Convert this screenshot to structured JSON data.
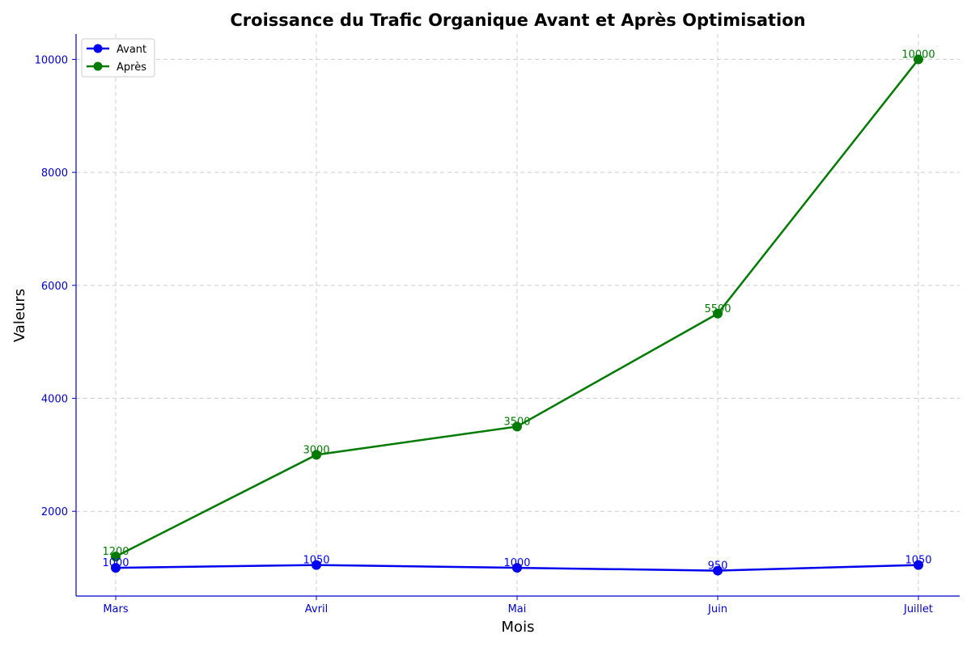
{
  "chart_data": {
    "type": "line",
    "title": "Croissance du Trafic Organique Avant et Après Optimisation",
    "xlabel": "Mois",
    "ylabel": "Valeurs",
    "categories": [
      "Mars",
      "Avril",
      "Mai",
      "Juin",
      "Juillet"
    ],
    "ylim": [
      500,
      10450
    ],
    "yticks": [
      2000,
      4000,
      6000,
      8000,
      10000
    ],
    "grid": true,
    "legend_position": "top-left",
    "series": [
      {
        "name": "Avant",
        "values": [
          1000,
          1050,
          1000,
          950,
          1050
        ],
        "color": "#0000ee"
      },
      {
        "name": "Après",
        "values": [
          1200,
          3000,
          3500,
          5500,
          10000
        ],
        "color": "#007a00"
      }
    ],
    "axis_color": "#0000cc"
  }
}
